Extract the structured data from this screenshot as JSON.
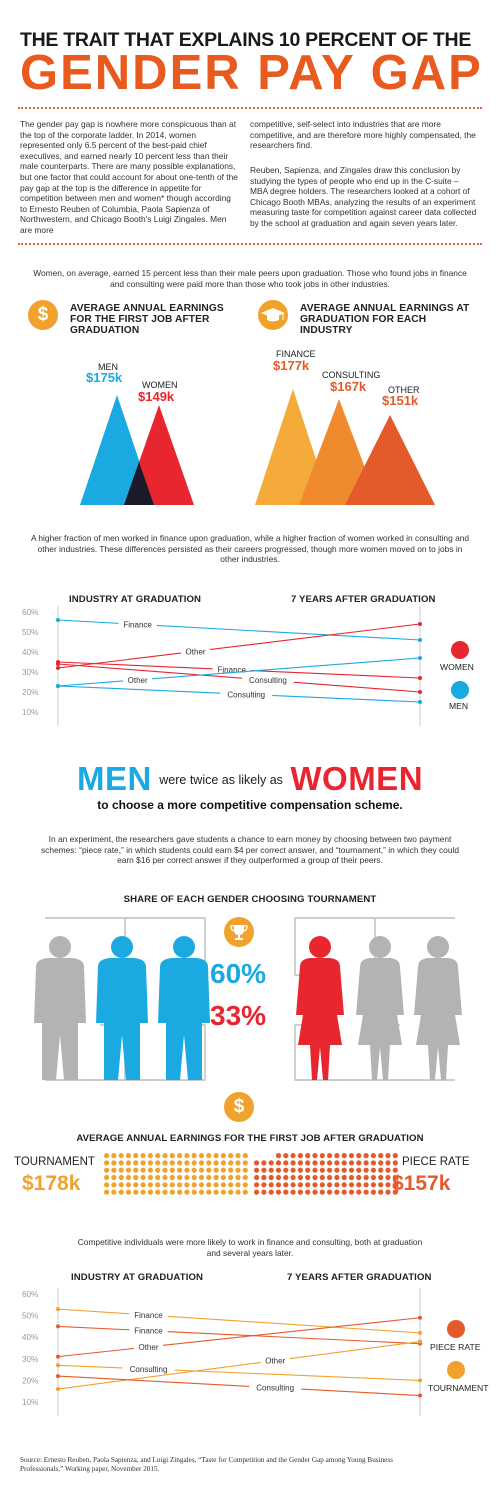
{
  "title": {
    "line1": "THE TRAIT THAT EXPLAINS 10 PERCENT OF THE",
    "line2": "GENDER PAY GAP"
  },
  "intro": {
    "col1": "The gender pay gap is nowhere more conspicuous than at the top of the corporate ladder. In 2014, women represented only 6.5 percent of the best-paid chief executives, and earned nearly 10 percent less than their male counterparts. There are many possible explanations, but one factor that could account for about one-tenth of the pay gap at the top is the difference in appetite for competition between men and women* though according to Ernesto Reuben of Columbia, Paola Sapienza of Northwestern, and Chicago Booth's Luigi Zingales. Men are more",
    "col2a": "competitive, self-select into industries that are more competitive, and are therefore more highly compensated, the researchers find.",
    "col2b": "Reuben, Sapienza, and Zingales draw this conclusion by studying the types of people who end up in the C-suite – MBA degree holders. The researchers looked at a cohort of Chicago Booth MBAs, analyzing the results of an experiment measuring taste for competition against career data collected by the school at graduation and again seven years later."
  },
  "section1": {
    "text": "Women, on average, earned 15 percent less than their male peers upon graduation. Those who found jobs in finance and consulting were paid more than those who took jobs in other industries.",
    "left_heading": "AVERAGE ANNUAL EARNINGS FOR THE FIRST JOB AFTER GRADUATION",
    "right_heading": "AVERAGE ANNUAL EARNINGS AT GRADUATION FOR EACH INDUSTRY",
    "icon_dollar": "$",
    "men_label": "MEN",
    "men_value": "$175k",
    "women_label": "WOMEN",
    "women_value": "$149k",
    "finance_label": "FINANCE",
    "finance_value": "$177k",
    "consulting_label": "CONSULTING",
    "consulting_value": "$167k",
    "other_label": "OTHER",
    "other_value": "$151k"
  },
  "section2": {
    "text": "A higher fraction of men worked in finance upon graduation, while a higher fraction of women worked in consulting and other industries. These differences persisted as their careers progressed, though more women moved on to jobs in other industries.",
    "left_heading": "INDUSTRY AT GRADUATION",
    "right_heading": "7 YEARS AFTER GRADUATION",
    "yticks": [
      "60%",
      "50%",
      "40%",
      "30%",
      "20%",
      "10%"
    ],
    "legend": {
      "women": "WOMEN",
      "men": "MEN"
    },
    "line_labels": {
      "finance_men": "Finance",
      "other_women": "Other",
      "finance_women": "Finance",
      "consulting_women": "Consulting",
      "other_men": "Other",
      "consulting_men": "Consulting"
    }
  },
  "section3": {
    "men": "MEN",
    "mid": "were twice as likely as",
    "women": "WOMEN",
    "sub": "to choose a more competitive compensation scheme.",
    "text": "In an experiment, the researchers gave students a chance to earn money by choosing between two payment schemes: “piece rate,” in which students could earn $4 per correct answer, and “tournament,” in which they could earn $16 per correct answer if they outperformed a group of their peers.",
    "heading": "SHARE OF EACH GENDER CHOOSING TOURNAMENT",
    "men_pct": "60%",
    "women_pct": "33%"
  },
  "section4": {
    "heading": "AVERAGE ANNUAL EARNINGS FOR THE FIRST JOB AFTER GRADUATION",
    "tournament_label": "TOURNAMENT",
    "tournament_value": "$178k",
    "piece_label": "PIECE RATE",
    "piece_value": "$157k",
    "text": "Competitive individuals were more likely to work in finance and consulting, both at graduation and several years later."
  },
  "section5": {
    "left_heading": "INDUSTRY AT GRADUATION",
    "right_heading": "7 YEARS AFTER GRADUATION",
    "yticks": [
      "60%",
      "50%",
      "40%",
      "30%",
      "20%",
      "10%"
    ],
    "legend": {
      "piece": "PIECE RATE",
      "tournament": "TOURNAMENT"
    },
    "line_labels": {
      "finance_t": "Finance",
      "finance_p": "Finance",
      "other_p": "Other",
      "consulting_t": "Consulting",
      "other_t": "Other",
      "consulting_p": "Consulting"
    }
  },
  "source": "Source: Ernesto Reuben, Paola Sapienza, and Luigi Zingales, “Taste for Competition and the Gender Gap among Young Business Professionals,” Working paper, November 2015.",
  "colors": {
    "blue": "#1ba9e1",
    "red": "#e8262f",
    "orange": "#f0a22c",
    "darkorange": "#e55a2b",
    "gray": "#b3b3b3"
  },
  "chart_data": [
    {
      "type": "line",
      "x": [
        "Industry at graduation",
        "7 years after graduation"
      ],
      "ylim": [
        10,
        60
      ],
      "series": [
        {
          "name": "Finance (men)",
          "values": [
            56,
            46
          ]
        },
        {
          "name": "Other (women)",
          "values": [
            32,
            54
          ]
        },
        {
          "name": "Finance (women)",
          "values": [
            35,
            27
          ]
        },
        {
          "name": "Consulting (women)",
          "values": [
            34,
            20
          ]
        },
        {
          "name": "Other (men)",
          "values": [
            23,
            37
          ]
        },
        {
          "name": "Consulting (men)",
          "values": [
            23,
            15
          ]
        }
      ]
    },
    {
      "type": "line",
      "x": [
        "Industry at graduation",
        "7 years after graduation"
      ],
      "ylim": [
        10,
        60
      ],
      "series": [
        {
          "name": "Finance (tournament)",
          "values": [
            53,
            42
          ]
        },
        {
          "name": "Finance (piece rate)",
          "values": [
            45,
            37
          ]
        },
        {
          "name": "Other (piece rate)",
          "values": [
            31,
            49
          ]
        },
        {
          "name": "Consulting (tournament)",
          "values": [
            27,
            20
          ]
        },
        {
          "name": "Other (tournament)",
          "values": [
            16,
            38
          ]
        },
        {
          "name": "Consulting (piece rate)",
          "values": [
            22,
            13
          ]
        }
      ]
    }
  ]
}
